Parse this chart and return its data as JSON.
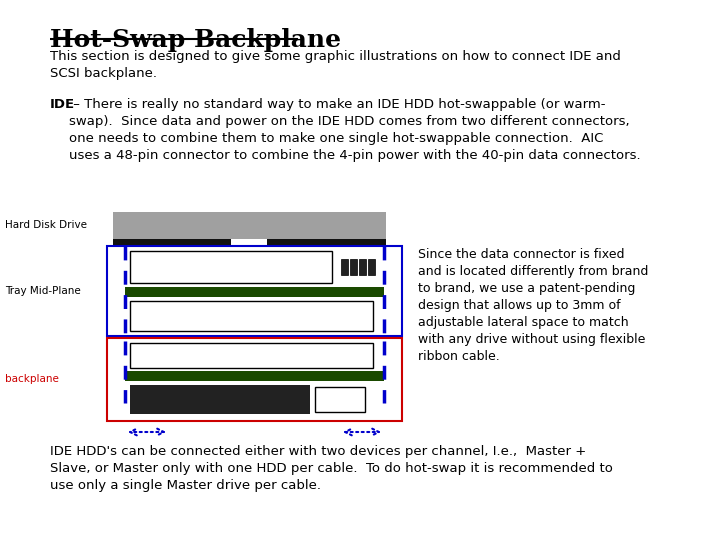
{
  "title": "Hot-Swap Backplane",
  "intro_text": "This section is designed to give some graphic illustrations on how to connect IDE and\nSCSI backplane.",
  "ide_bold": "IDE",
  "ide_text": " – There is really no standard way to make an IDE HDD hot-swappable (or warm-\nswap).  Since data and power on the IDE HDD comes from two different connectors,\none needs to combine them to make one single hot-swappable connection.  AIC\nuses a 48-pin connector to combine the 4-pin power with the 40-pin data connectors.",
  "right_text": "Since the data connector is fixed\nand is located differently from brand\nto brand, we use a patent-pending\ndesign that allows up to 3mm of\nadjustable lateral space to match\nwith any drive without using flexible\nribbon cable.",
  "bottom_text": "IDE HDD's can be connected either with two devices per channel, I.e.,  Master +\nSlave, or Master only with one HDD per cable.  To do hot-swap it is recommended to\nuse only a single Master drive per cable.",
  "label_hdd": "Hard Disk Drive",
  "label_tray": "Tray Mid-Plane",
  "label_backplane": "backplane",
  "bg_color": "#ffffff",
  "gray_color": "#a0a0a0",
  "dark_green": "#1a4a00",
  "blue_color": "#0000cc",
  "red_color": "#cc0000",
  "backplane_label_color": "#cc0000"
}
